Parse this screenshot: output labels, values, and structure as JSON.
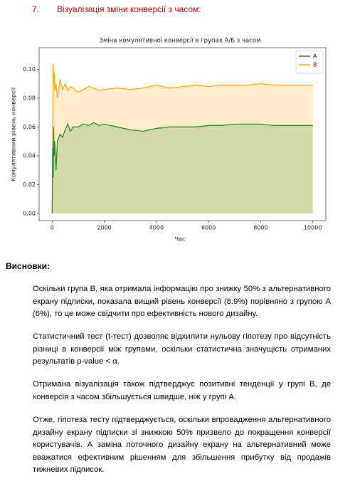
{
  "heading": {
    "number": "7.",
    "title": "Візуалізація зміни конверсії з часом:"
  },
  "chart_data": {
    "type": "line",
    "title": "Зміна комулятивної конверсії в групах А/Б з часом",
    "xlabel": "Час",
    "ylabel": "Комулятивний рівень конверсії",
    "x": [
      0,
      20,
      40,
      60,
      80,
      100,
      150,
      200,
      300,
      400,
      500,
      600,
      700,
      800,
      1000,
      1200,
      1400,
      1600,
      1800,
      2000,
      2500,
      3000,
      3500,
      4000,
      4500,
      5000,
      5500,
      6000,
      6500,
      7000,
      7500,
      8000,
      8500,
      9000,
      9500,
      10000
    ],
    "series": [
      {
        "name": "A",
        "color": "#1a8a1a",
        "values": [
          0,
          0.045,
          0.025,
          0.06,
          0.04,
          0.05,
          0.03,
          0.05,
          0.055,
          0.053,
          0.058,
          0.062,
          0.057,
          0.06,
          0.06,
          0.062,
          0.061,
          0.063,
          0.061,
          0.062,
          0.06,
          0.058,
          0.057,
          0.059,
          0.06,
          0.06,
          0.06,
          0.061,
          0.061,
          0.062,
          0.062,
          0.062,
          0.061,
          0.061,
          0.061,
          0.061
        ]
      },
      {
        "name": "B",
        "color": "#ffa500",
        "values": [
          0,
          0.06,
          0.104,
          0.09,
          0.098,
          0.085,
          0.09,
          0.08,
          0.093,
          0.086,
          0.09,
          0.085,
          0.088,
          0.087,
          0.084,
          0.086,
          0.088,
          0.087,
          0.085,
          0.086,
          0.087,
          0.086,
          0.087,
          0.089,
          0.087,
          0.088,
          0.089,
          0.088,
          0.089,
          0.089,
          0.089,
          0.09,
          0.089,
          0.089,
          0.089,
          0.089
        ]
      }
    ],
    "xlim": [
      -500,
      10500
    ],
    "xticks": [
      0,
      2000,
      4000,
      6000,
      8000,
      10000
    ],
    "ylim": [
      -0.005,
      0.115
    ],
    "yticks": [
      {
        "value": 0,
        "label": "0.00"
      },
      {
        "value": 0.02,
        "label": "0.02"
      },
      {
        "value": 0.04,
        "label": "0.04"
      },
      {
        "value": 0.06,
        "label": "0.06"
      },
      {
        "value": 0.08,
        "label": "0.08"
      },
      {
        "value": 0.1,
        "label": "0.10"
      }
    ],
    "fill": true,
    "legend": "upper right"
  },
  "conclusions": {
    "title": "Висновки:",
    "paragraphs": [
      "Оскільки група B, яка отримала інформацію про знижку 50% з альтернативного екрану підписки, показала вищий рівень конверсії (8.9%) порівняно з групою A (6%), то це може свідчити про ефективність нового дизайну.",
      "Статистичний тест (t-тест) дозволяє відхилити нульову гіпотезу про відсутність різниці в конверсії між групами, оскільки статистична значущість отриманих результатів p-value < α.",
      "Отримана візуалізація також підтверджує позитивні тенденції у групі B, де конверсія з часом збільшується швидше, ніж у групі A.",
      "Отже, гіпотеза тесту підтверджується, оскільки впровадження альтернативного дизайну екрану підписки зі знижкою 50% призвело до покращення конверсії користувачів. А заміна поточного дизайну екрану на альтернативний може вважатися ефективним рішенням для збільшення прибутку від продажів тижневих підписок."
    ]
  }
}
